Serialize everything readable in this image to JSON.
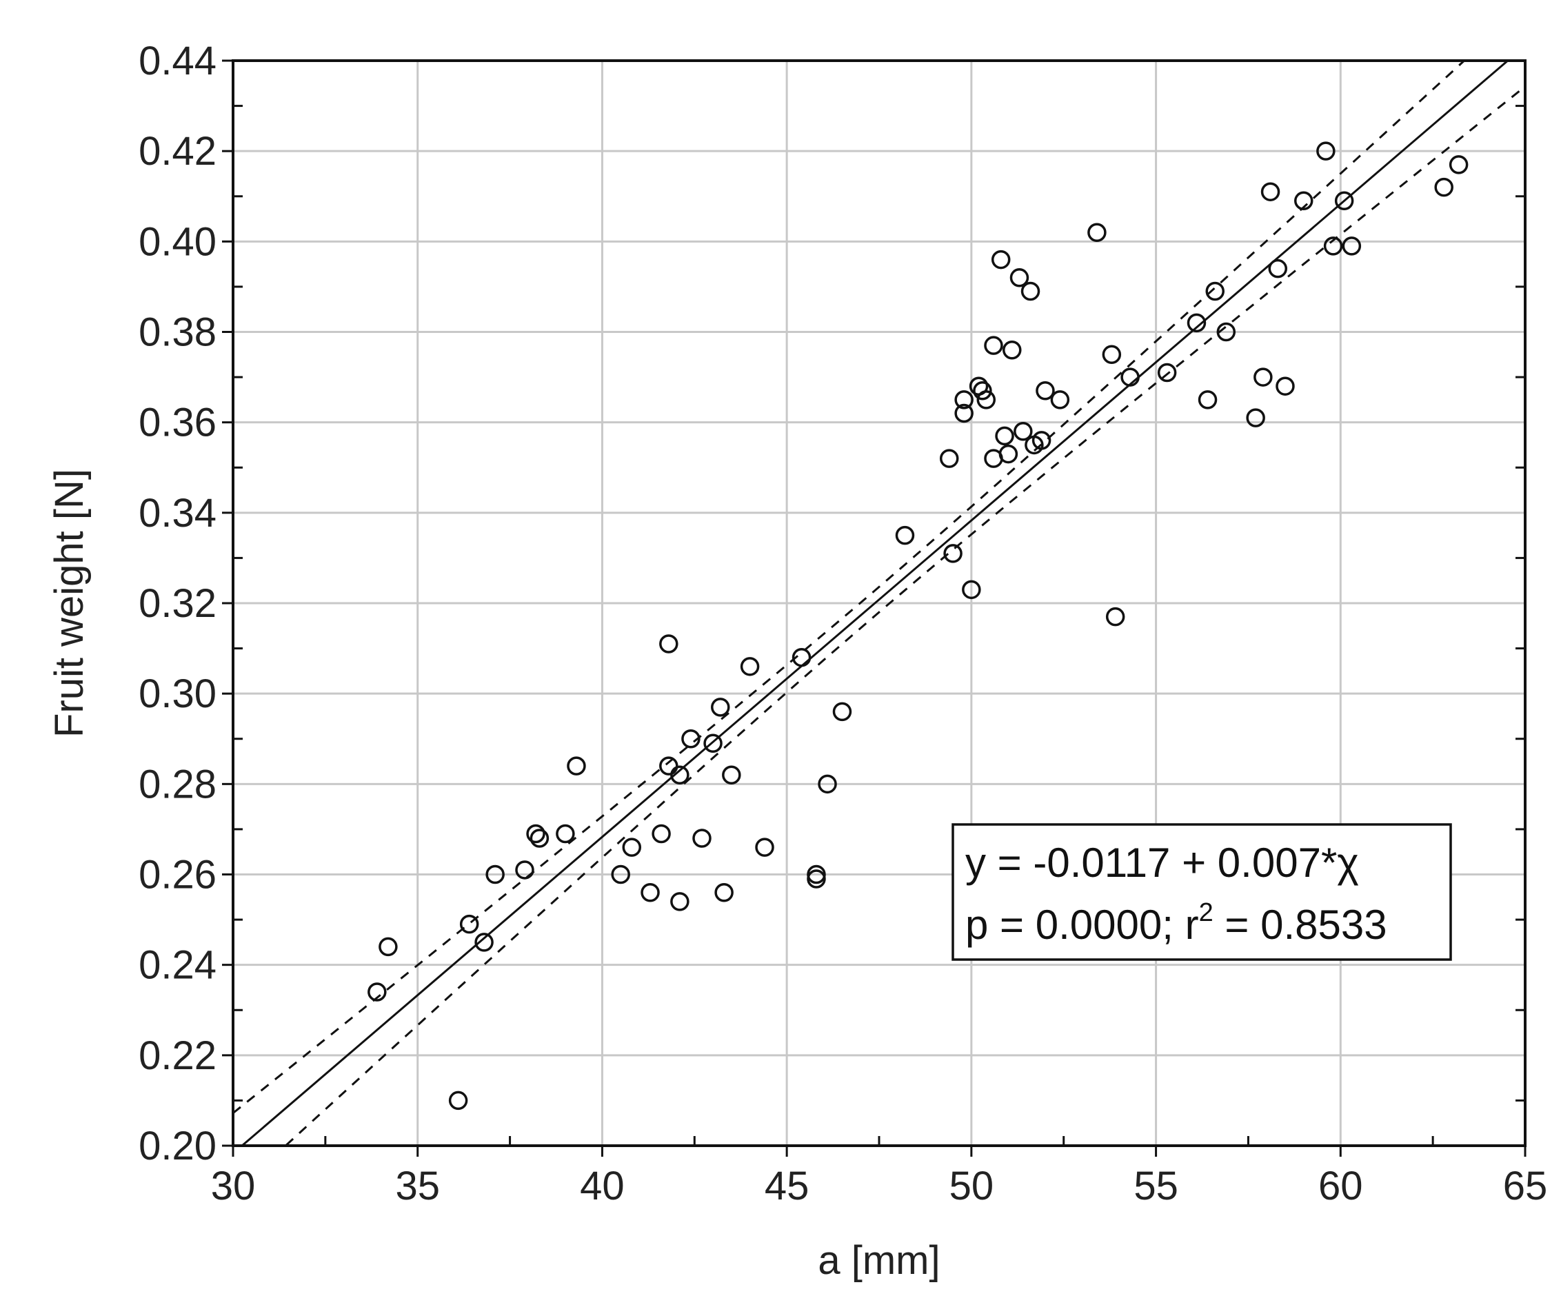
{
  "chart_data": {
    "type": "scatter",
    "xlabel": "a [mm]",
    "ylabel": "Fruit weight [N]",
    "xlim": [
      30,
      65
    ],
    "ylim": [
      0.2,
      0.44
    ],
    "x_ticks": [
      30,
      35,
      40,
      45,
      50,
      55,
      60,
      65
    ],
    "x_tick_labels": [
      "30",
      "35",
      "40",
      "45",
      "50",
      "55",
      "60",
      "65"
    ],
    "y_ticks": [
      0.2,
      0.22,
      0.24,
      0.26,
      0.28,
      0.3,
      0.32,
      0.34,
      0.36,
      0.38,
      0.4,
      0.42,
      0.44
    ],
    "y_tick_labels": [
      "0.20",
      "0.22",
      "0.24",
      "0.26",
      "0.28",
      "0.30",
      "0.32",
      "0.34",
      "0.36",
      "0.38",
      "0.40",
      "0.42",
      "0.44"
    ],
    "grid": true,
    "marker": "open-circle",
    "points": [
      [
        33.9,
        0.234
      ],
      [
        34.2,
        0.244
      ],
      [
        36.1,
        0.21
      ],
      [
        36.4,
        0.249
      ],
      [
        36.8,
        0.245
      ],
      [
        37.1,
        0.26
      ],
      [
        37.9,
        0.261
      ],
      [
        38.2,
        0.269
      ],
      [
        38.3,
        0.268
      ],
      [
        39.0,
        0.269
      ],
      [
        39.3,
        0.284
      ],
      [
        40.5,
        0.26
      ],
      [
        40.8,
        0.266
      ],
      [
        41.3,
        0.256
      ],
      [
        41.6,
        0.269
      ],
      [
        41.8,
        0.311
      ],
      [
        41.8,
        0.284
      ],
      [
        42.1,
        0.254
      ],
      [
        42.1,
        0.282
      ],
      [
        42.4,
        0.29
      ],
      [
        42.7,
        0.268
      ],
      [
        43.0,
        0.289
      ],
      [
        43.2,
        0.297
      ],
      [
        43.3,
        0.256
      ],
      [
        43.5,
        0.282
      ],
      [
        44.0,
        0.306
      ],
      [
        44.4,
        0.266
      ],
      [
        45.4,
        0.308
      ],
      [
        45.8,
        0.26
      ],
      [
        45.8,
        0.259
      ],
      [
        46.1,
        0.28
      ],
      [
        46.5,
        0.296
      ],
      [
        48.2,
        0.335
      ],
      [
        49.4,
        0.352
      ],
      [
        49.5,
        0.331
      ],
      [
        49.8,
        0.365
      ],
      [
        49.8,
        0.362
      ],
      [
        50.0,
        0.323
      ],
      [
        50.2,
        0.368
      ],
      [
        50.3,
        0.367
      ],
      [
        50.4,
        0.365
      ],
      [
        50.6,
        0.352
      ],
      [
        50.6,
        0.377
      ],
      [
        50.8,
        0.396
      ],
      [
        50.9,
        0.357
      ],
      [
        51.0,
        0.353
      ],
      [
        51.1,
        0.376
      ],
      [
        51.3,
        0.392
      ],
      [
        51.4,
        0.358
      ],
      [
        51.6,
        0.389
      ],
      [
        51.7,
        0.355
      ],
      [
        51.9,
        0.356
      ],
      [
        52.0,
        0.367
      ],
      [
        52.4,
        0.365
      ],
      [
        53.4,
        0.402
      ],
      [
        53.8,
        0.375
      ],
      [
        53.9,
        0.317
      ],
      [
        54.3,
        0.37
      ],
      [
        55.3,
        0.371
      ],
      [
        56.1,
        0.382
      ],
      [
        56.4,
        0.365
      ],
      [
        56.6,
        0.389
      ],
      [
        56.9,
        0.38
      ],
      [
        57.7,
        0.361
      ],
      [
        57.9,
        0.37
      ],
      [
        58.1,
        0.411
      ],
      [
        58.3,
        0.394
      ],
      [
        58.5,
        0.368
      ],
      [
        59.0,
        0.409
      ],
      [
        59.6,
        0.42
      ],
      [
        59.8,
        0.399
      ],
      [
        60.1,
        0.409
      ],
      [
        60.3,
        0.399
      ],
      [
        62.8,
        0.412
      ],
      [
        63.2,
        0.417
      ]
    ],
    "regression": {
      "intercept": -0.0117,
      "slope": 0.007,
      "style": "solid"
    },
    "confidence_band": {
      "half_width_at_ends": 0.009,
      "half_width_at_center": 0.0028,
      "center_x": 47.4,
      "style": "dashed"
    },
    "annotation": {
      "line1": "y = -0.0117 + 0.007*χ",
      "line2_prefix": "p = 0.0000; r",
      "line2_sup": "2",
      "line2_suffix": " = 0.8533",
      "placement": "lower-right"
    }
  }
}
